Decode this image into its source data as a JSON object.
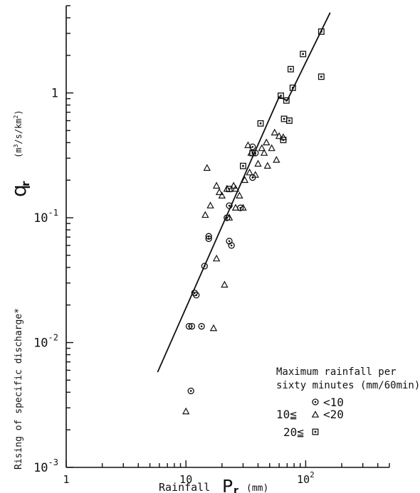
{
  "chart_data": {
    "type": "scatter",
    "xscale": "log",
    "yscale": "log",
    "xlim": [
      1,
      500
    ],
    "ylim": [
      0.001,
      5
    ],
    "x_tick_labels": [
      {
        "value": 1,
        "base": "1",
        "exp": ""
      },
      {
        "value": 10,
        "base": "10",
        "exp": ""
      },
      {
        "value": 100,
        "base": "10",
        "exp": "2"
      }
    ],
    "y_tick_labels": [
      {
        "value": 0.001,
        "base": "10",
        "exp": "-3"
      },
      {
        "value": 0.01,
        "base": "10",
        "exp": "-2"
      },
      {
        "value": 0.1,
        "base": "10",
        "exp": "-1"
      },
      {
        "value": 1,
        "base": "1",
        "exp": ""
      }
    ],
    "xlabel": {
      "prefix": "Rainfall",
      "symbol": "P",
      "sub": "r",
      "unit": "(mm)"
    },
    "ylabel": {
      "text": "Rising of specific discharge*",
      "symbol": "q",
      "sub": "r",
      "unit_pre": "(m",
      "unit_exp1": "3",
      "unit_mid": "/s/km",
      "unit_exp2": "2",
      "unit_post": ")"
    },
    "legend": {
      "title_line1": "Maximum rainfall per",
      "title_line2": "sixty minutes (mm/60min)",
      "entries": [
        {
          "marker": "circle",
          "label": "<10"
        },
        {
          "marker": "triangle",
          "label": "10≦ ",
          "label_after": "<20"
        },
        {
          "marker": "square",
          "label": "20≦ "
        }
      ],
      "position": "lower-right"
    },
    "fit_line": [
      [
        5.8,
        0.0058
      ],
      [
        60,
        0.93
      ],
      [
        70,
        0.87
      ],
      [
        160,
        4.4
      ]
    ],
    "series": [
      {
        "marker": "circle",
        "points": [
          [
            11,
            0.0041
          ],
          [
            10.6,
            0.0135
          ],
          [
            11.2,
            0.0135
          ],
          [
            13.5,
            0.0135
          ],
          [
            11.8,
            0.025
          ],
          [
            12.2,
            0.024
          ],
          [
            14.3,
            0.041
          ],
          [
            15.5,
            0.068
          ],
          [
            15.5,
            0.071
          ],
          [
            23,
            0.065
          ],
          [
            24,
            0.06
          ],
          [
            22,
            0.1
          ],
          [
            23,
            0.125
          ],
          [
            28.5,
            0.12
          ],
          [
            36,
            0.21
          ],
          [
            38,
            0.33
          ],
          [
            36,
            0.37
          ]
        ]
      },
      {
        "marker": "triangle",
        "points": [
          [
            10,
            0.0028
          ],
          [
            17,
            0.013
          ],
          [
            21,
            0.029
          ],
          [
            18,
            0.047
          ],
          [
            14.5,
            0.105
          ],
          [
            16,
            0.125
          ],
          [
            15,
            0.25
          ],
          [
            18,
            0.18
          ],
          [
            19,
            0.16
          ],
          [
            20,
            0.15
          ],
          [
            22,
            0.17
          ],
          [
            23,
            0.1
          ],
          [
            26,
            0.12
          ],
          [
            26,
            0.17
          ],
          [
            25,
            0.18
          ],
          [
            28,
            0.15
          ],
          [
            30,
            0.12
          ],
          [
            31,
            0.2
          ],
          [
            33,
            0.38
          ],
          [
            34,
            0.23
          ],
          [
            35,
            0.33
          ],
          [
            38,
            0.22
          ],
          [
            40,
            0.27
          ],
          [
            43,
            0.36
          ],
          [
            45,
            0.33
          ],
          [
            47,
            0.4
          ],
          [
            48,
            0.26
          ],
          [
            52,
            0.36
          ],
          [
            55,
            0.48
          ],
          [
            57,
            0.29
          ],
          [
            60,
            0.45
          ],
          [
            65,
            0.44
          ]
        ]
      },
      {
        "marker": "square",
        "points": [
          [
            23,
            0.17
          ],
          [
            30,
            0.26
          ],
          [
            36,
            0.33
          ],
          [
            42,
            0.57
          ],
          [
            62,
            0.95
          ],
          [
            65,
            0.42
          ],
          [
            66,
            0.62
          ],
          [
            69,
            0.87
          ],
          [
            73,
            0.6
          ],
          [
            75,
            1.55
          ],
          [
            78,
            1.1
          ],
          [
            95,
            2.05
          ],
          [
            135,
            1.35
          ],
          [
            135,
            3.1
          ]
        ]
      }
    ],
    "grid": false
  }
}
